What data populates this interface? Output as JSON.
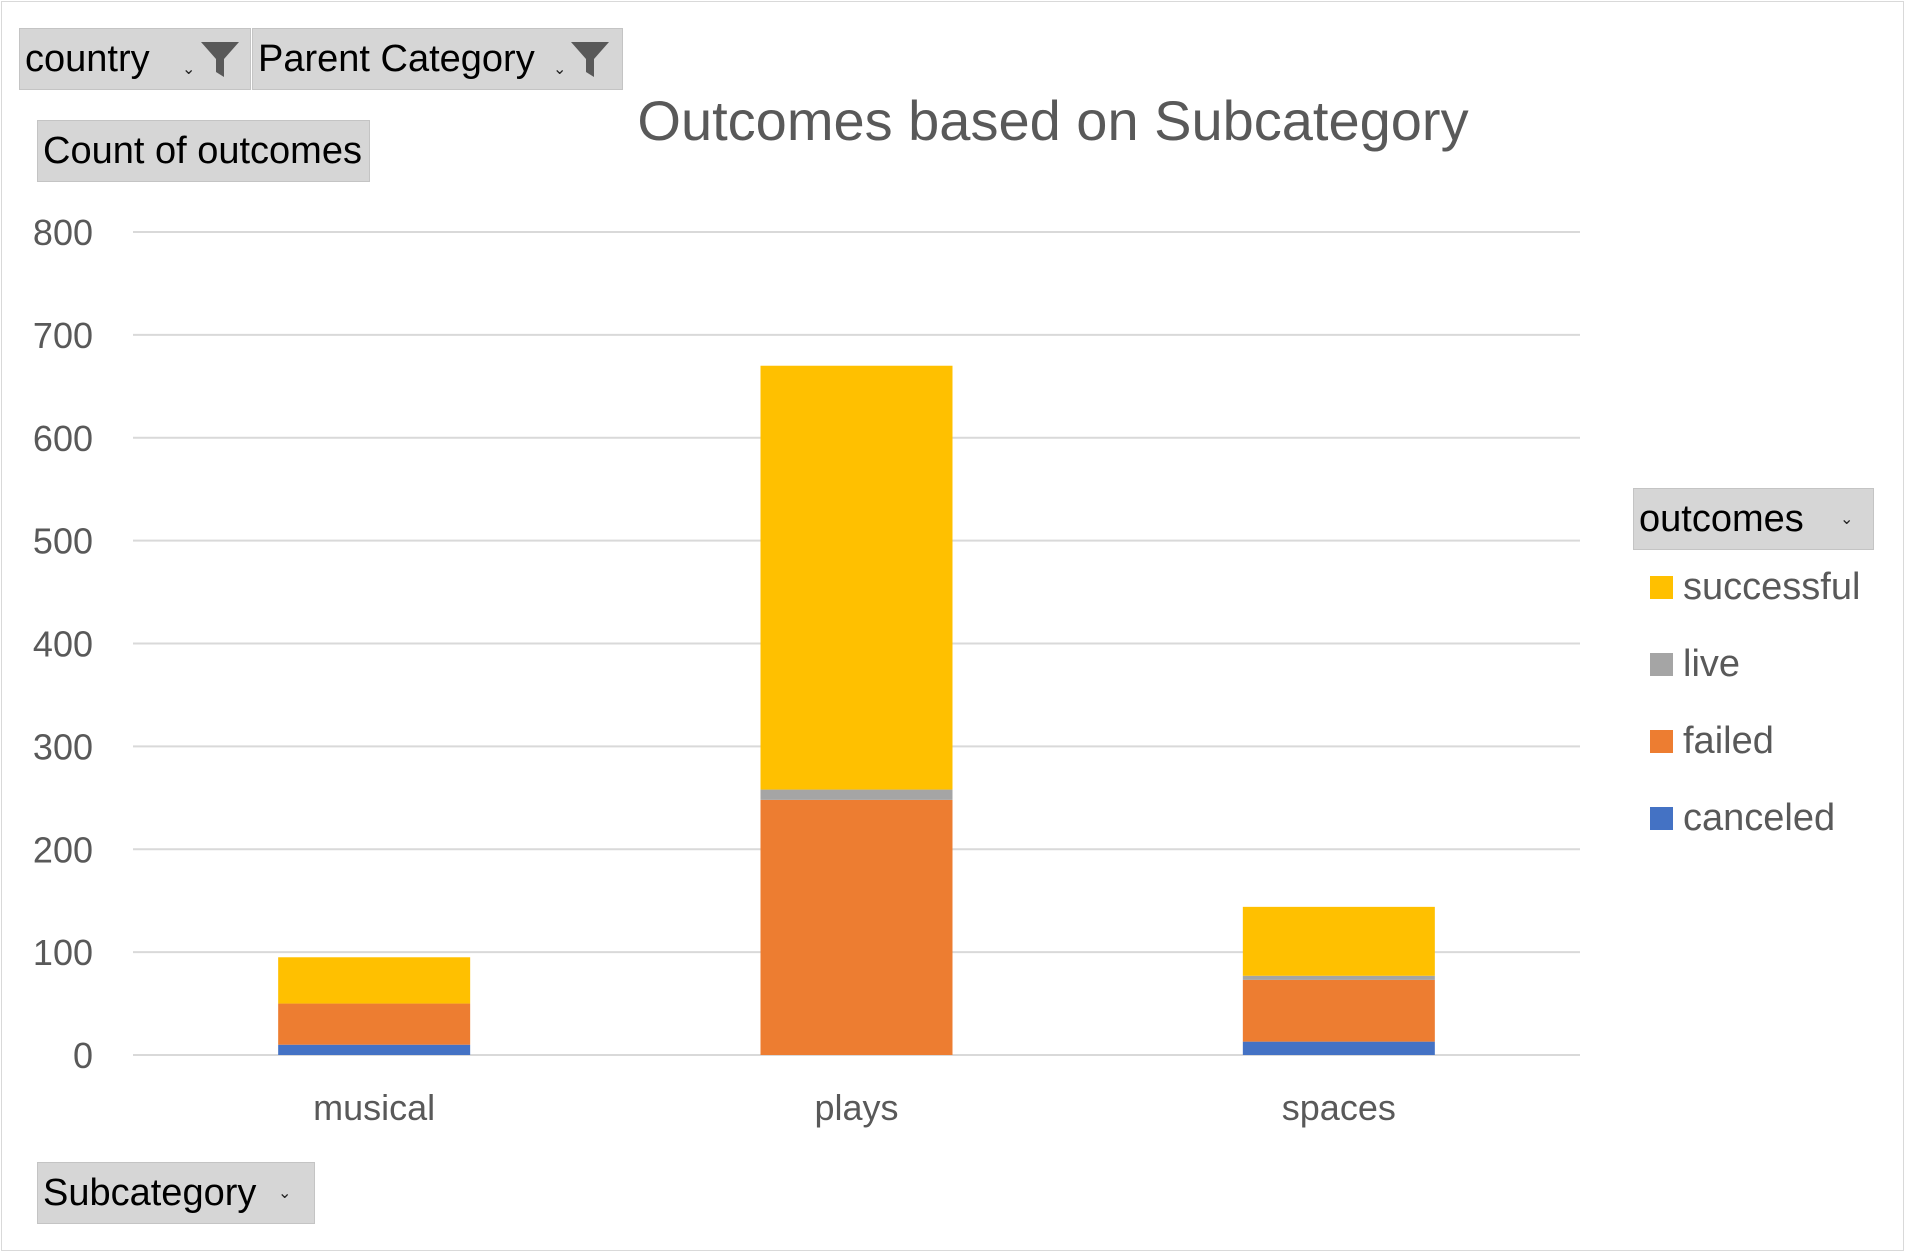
{
  "filters": {
    "country": {
      "label": "country"
    },
    "parent_category": {
      "label": "Parent Category"
    },
    "values_field": {
      "label": "Count of outcomes"
    },
    "axis_field": {
      "label": "Subcategory"
    },
    "legend_field": {
      "label": "outcomes"
    }
  },
  "chart_data": {
    "type": "bar",
    "stacked": true,
    "title": "Outcomes based on Subcategory",
    "xlabel": "",
    "ylabel": "",
    "ylim": [
      0,
      800
    ],
    "yticks": [
      0,
      100,
      200,
      300,
      400,
      500,
      600,
      700,
      800
    ],
    "grid": true,
    "legend_position": "right",
    "categories": [
      "musical",
      "plays",
      "spaces"
    ],
    "series": [
      {
        "name": "canceled",
        "color": "#4472C4",
        "values": [
          10,
          0,
          13
        ]
      },
      {
        "name": "failed",
        "color": "#ED7D31",
        "values": [
          40,
          248,
          60
        ]
      },
      {
        "name": "live",
        "color": "#A5A5A5",
        "values": [
          0,
          10,
          4
        ]
      },
      {
        "name": "successful",
        "color": "#FFC000",
        "values": [
          45,
          412,
          67
        ]
      }
    ]
  }
}
